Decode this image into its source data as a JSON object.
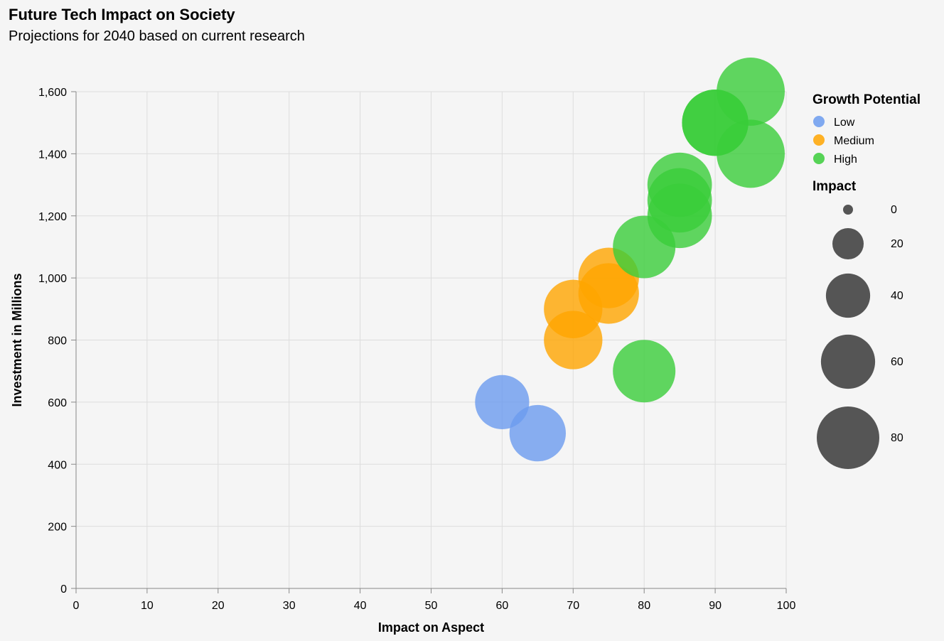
{
  "chart_data": {
    "type": "scatter",
    "title": "Future Tech Impact on Society",
    "subtitle": "Projections for 2040 based on current research",
    "xlabel": "Impact on Aspect",
    "ylabel": "Investment in Millions",
    "xlim": [
      0,
      100
    ],
    "ylim": [
      0,
      1600
    ],
    "x_ticks": [
      "0",
      "10",
      "20",
      "30",
      "40",
      "50",
      "60",
      "70",
      "80",
      "90",
      "100"
    ],
    "y_ticks": [
      "0",
      "200",
      "400",
      "600",
      "800",
      "1,000",
      "1,200",
      "1,400",
      "1,600"
    ],
    "grid": true,
    "legend_position": "right",
    "color_legend": {
      "title": "Growth Potential",
      "entries": [
        {
          "label": "Low",
          "color": "#6b9bef"
        },
        {
          "label": "Medium",
          "color": "#ffa500"
        },
        {
          "label": "High",
          "color": "#3acd3a"
        }
      ]
    },
    "size_legend": {
      "title": "Impact",
      "entries": [
        {
          "label": "0",
          "value": 0
        },
        {
          "label": "20",
          "value": 20
        },
        {
          "label": "40",
          "value": 40
        },
        {
          "label": "60",
          "value": 60
        },
        {
          "label": "80",
          "value": 80
        }
      ]
    },
    "points": [
      {
        "x": 60,
        "y": 600,
        "growth": "Low"
      },
      {
        "x": 65,
        "y": 500,
        "growth": "Low"
      },
      {
        "x": 70,
        "y": 900,
        "growth": "Medium"
      },
      {
        "x": 70,
        "y": 800,
        "growth": "Medium"
      },
      {
        "x": 75,
        "y": 1000,
        "growth": "Medium"
      },
      {
        "x": 75,
        "y": 950,
        "growth": "Medium"
      },
      {
        "x": 80,
        "y": 1100,
        "growth": "High"
      },
      {
        "x": 80,
        "y": 700,
        "growth": "High"
      },
      {
        "x": 85,
        "y": 1300,
        "growth": "High"
      },
      {
        "x": 85,
        "y": 1250,
        "growth": "High"
      },
      {
        "x": 85,
        "y": 1200,
        "growth": "High"
      },
      {
        "x": 90,
        "y": 1500,
        "growth": "High"
      },
      {
        "x": 90,
        "y": 1500,
        "growth": "High"
      },
      {
        "x": 95,
        "y": 1600,
        "growth": "High"
      },
      {
        "x": 95,
        "y": 1400,
        "growth": "High"
      }
    ]
  }
}
